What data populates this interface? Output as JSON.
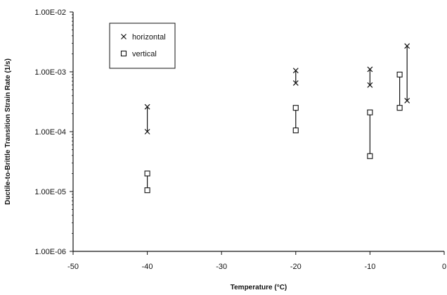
{
  "chart_data": {
    "type": "scatter",
    "title": "",
    "xlabel": "Temperature (°C)",
    "ylabel": "Ductile-to-Brittle Transition Strain Rate (1/s)",
    "xlim": [
      -50,
      0
    ],
    "ylim": [
      1e-06,
      0.01
    ],
    "yscale": "log",
    "x_ticks": [
      "-50",
      "-40",
      "-30",
      "-20",
      "-10",
      "0"
    ],
    "y_ticks": [
      "1.00E-06",
      "1.00E-05",
      "1.00E-04",
      "1.00E-03",
      "1.00E-02"
    ],
    "grid": false,
    "legend_position": "top-left",
    "series": [
      {
        "name": "horizontal",
        "marker": "x",
        "ranges": [
          {
            "x": -40,
            "low": 0.0001,
            "high": 0.00026
          },
          {
            "x": -20,
            "low": 0.00065,
            "high": 0.00105
          },
          {
            "x": -10,
            "low": 0.0006,
            "high": 0.0011
          },
          {
            "x": -5,
            "low": 0.00033,
            "high": 0.0027
          }
        ]
      },
      {
        "name": "vertical",
        "marker": "square",
        "ranges": [
          {
            "x": -40,
            "low": 1.05e-05,
            "high": 2e-05
          },
          {
            "x": -20,
            "low": 0.000105,
            "high": 0.00025
          },
          {
            "x": -10,
            "low": 3.9e-05,
            "high": 0.00021
          },
          {
            "x": -6,
            "low": 0.00025,
            "high": 0.0009
          }
        ]
      }
    ]
  }
}
